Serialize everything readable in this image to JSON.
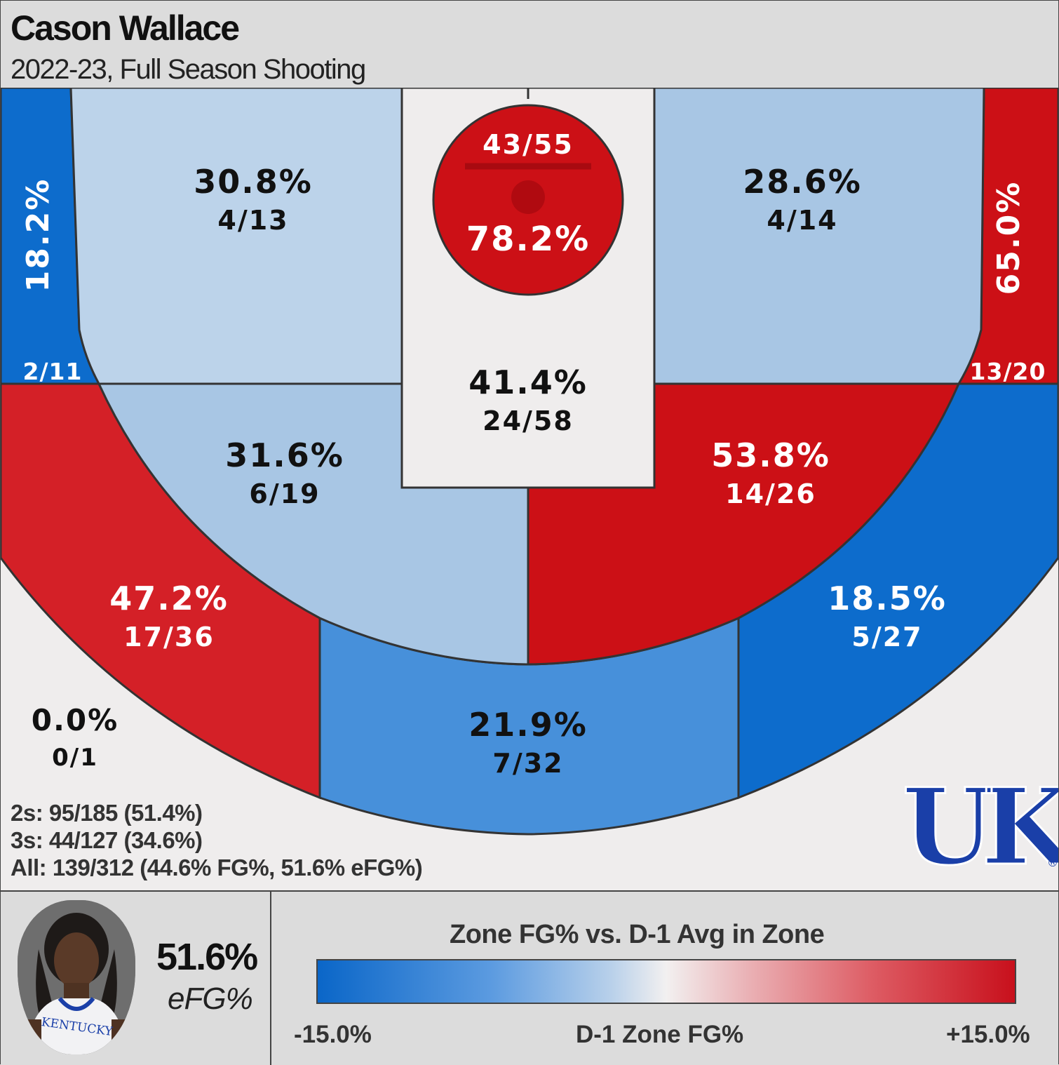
{
  "title": "Cason Wallace",
  "subtitle": "2022-23, Full Season Shooting",
  "colors": {
    "cold_strong": "#0d6ccc",
    "cold_mid": "#4790da",
    "cold_light": "#a8c6e4",
    "cold_pale": "#bcd3ea",
    "neutral": "#efeded",
    "hot_mid": "#d42027",
    "hot_strong": "#cc1016"
  },
  "chart_data": {
    "type": "heatmap",
    "zones": [
      {
        "id": "rim",
        "pct": "78.2%",
        "made_att": "43/55"
      },
      {
        "id": "paint",
        "pct": "41.4%",
        "made_att": "24/58"
      },
      {
        "id": "left-short-corner",
        "pct": "30.8%",
        "made_att": "4/13"
      },
      {
        "id": "right-short-corner",
        "pct": "28.6%",
        "made_att": "4/14"
      },
      {
        "id": "left-corner-three",
        "pct": "18.2%",
        "made_att": "2/11"
      },
      {
        "id": "right-corner-three",
        "pct": "65.0%",
        "made_att": "13/20"
      },
      {
        "id": "left-midrange",
        "pct": "31.6%",
        "made_att": "6/19"
      },
      {
        "id": "right-midrange",
        "pct": "53.8%",
        "made_att": "14/26"
      },
      {
        "id": "left-wing-three",
        "pct": "47.2%",
        "made_att": "17/36"
      },
      {
        "id": "right-wing-three",
        "pct": "18.5%",
        "made_att": "5/27"
      },
      {
        "id": "top-three",
        "pct": "21.9%",
        "made_att": "7/32"
      },
      {
        "id": "deep",
        "pct": "0.0%",
        "made_att": "0/1"
      }
    ]
  },
  "stats": {
    "twos": "2s: 95/185 (51.4%)",
    "threes": "3s: 44/127 (34.6%)",
    "all": "All: 139/312 (44.6% FG%, 51.6% eFG%)"
  },
  "logo": {
    "text": "UK",
    "icon": "uk-logo-icon"
  },
  "player": {
    "efg_value": "51.6%",
    "efg_label": "eFG%",
    "photo_icon": "player-photo"
  },
  "legend": {
    "title": "Zone FG% vs. D-1 Avg in Zone",
    "left": "-15.0%",
    "mid": "D-1 Zone FG%",
    "right": "+15.0%"
  }
}
